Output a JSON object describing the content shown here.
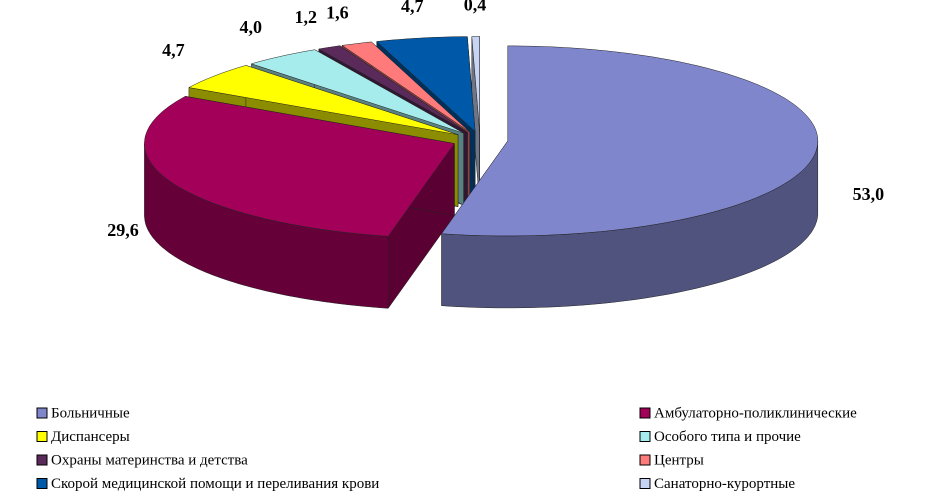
{
  "chart_data": {
    "type": "pie3d",
    "categories": [
      "Больничные",
      "Амбулаторно-поликлинические",
      "Диспансеры",
      "Особого типа и прочие",
      "Охраны материнства и детства",
      "Центры",
      "Скорой медицинской помощи и переливания крови",
      "Санаторно-курортные"
    ],
    "values": [
      53.0,
      29.6,
      4.7,
      4.0,
      1.2,
      1.6,
      4.7,
      0.4
    ],
    "value_labels": [
      "53,0",
      "29,6",
      "4,7",
      "4,0",
      "1,2",
      "1,6",
      "4,7",
      "0,4"
    ],
    "colors": [
      "#7f86cc",
      "#a3005a",
      "#ffff00",
      "#a6ecec",
      "#5a2a5a",
      "#ff7a7a",
      "#0058a8",
      "#c8d4f4"
    ],
    "legend": "bottom"
  }
}
